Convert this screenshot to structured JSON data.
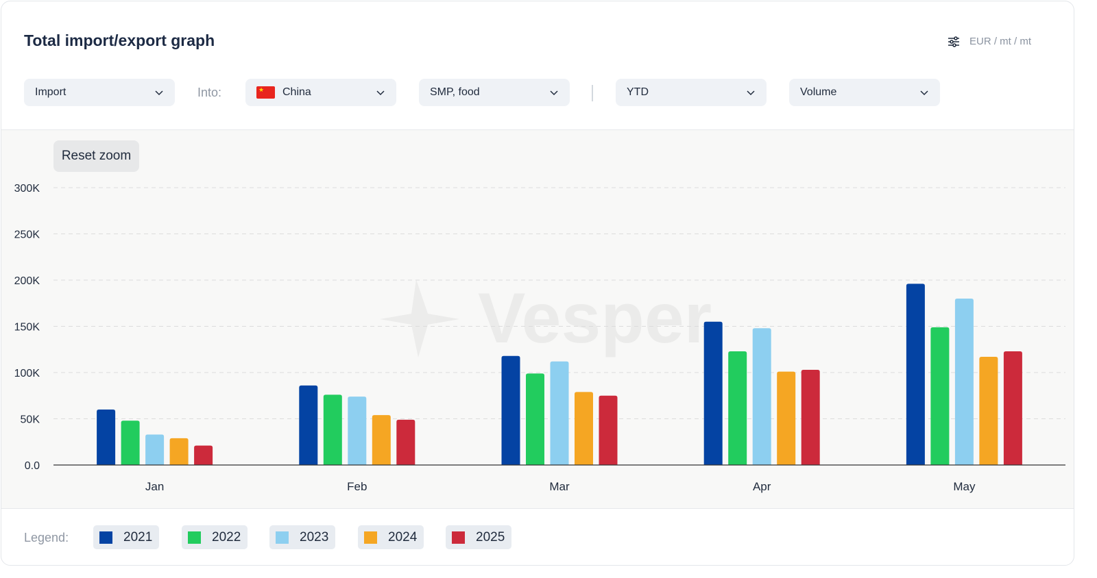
{
  "header": {
    "title": "Total import/export graph",
    "units_label": "EUR / mt / mt"
  },
  "filters": {
    "direction": "Import",
    "into_label": "Into:",
    "country": "China",
    "product": "SMP, food",
    "period": "YTD",
    "measure": "Volume"
  },
  "chart_controls": {
    "reset_zoom": "Reset zoom"
  },
  "watermark": "Vesper",
  "legend_title": "Legend:",
  "chart_data": {
    "type": "bar",
    "categories": [
      "Jan",
      "Feb",
      "Mar",
      "Apr",
      "May"
    ],
    "series": [
      {
        "name": "2021",
        "color": "#0443a3",
        "values": [
          60000,
          86000,
          118000,
          155000,
          196000
        ]
      },
      {
        "name": "2022",
        "color": "#22cc5e",
        "values": [
          48000,
          76000,
          99000,
          123000,
          149000
        ]
      },
      {
        "name": "2023",
        "color": "#8dcff0",
        "values": [
          33000,
          74000,
          112000,
          148000,
          180000
        ]
      },
      {
        "name": "2024",
        "color": "#f5a623",
        "values": [
          29000,
          54000,
          79000,
          101000,
          117000
        ]
      },
      {
        "name": "2025",
        "color": "#cc2a3b",
        "values": [
          21000,
          49000,
          75000,
          103000,
          123000
        ]
      }
    ],
    "ylim": [
      0,
      300000
    ],
    "yticks": [
      0,
      50000,
      100000,
      150000,
      200000,
      250000,
      300000
    ],
    "ytick_labels": [
      "0.0",
      "50K",
      "100K",
      "150K",
      "200K",
      "250K",
      "300K"
    ],
    "grid": true,
    "legend_position": "bottom"
  }
}
